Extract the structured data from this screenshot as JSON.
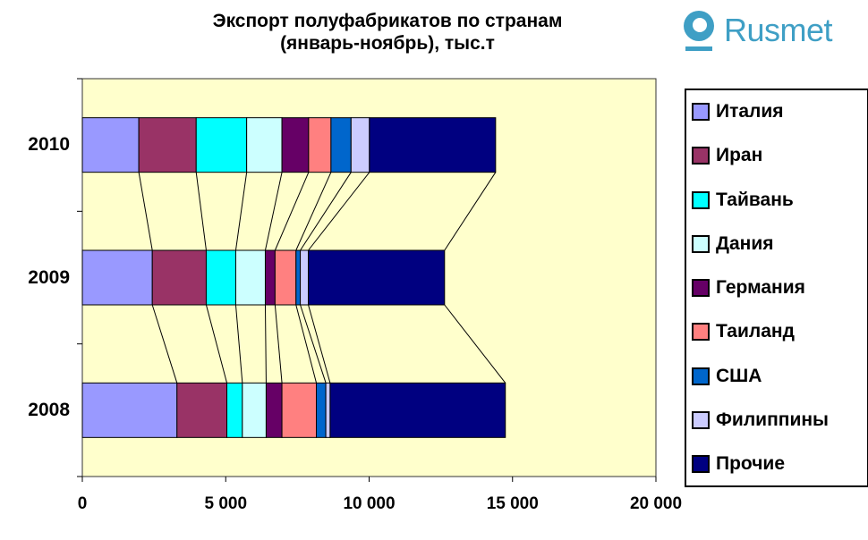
{
  "title": {
    "line1": "Экспорт полуфабрикатов по странам",
    "line2": "(январь-ноябрь), тыс.т"
  },
  "logo": {
    "text": "Rusmet",
    "color": "#3f9fc5"
  },
  "chart_data": {
    "type": "bar",
    "orientation": "horizontal",
    "stacked": true,
    "series_lines": true,
    "title": "Экспорт полуфабрикатов по странам (январь-ноябрь), тыс.т",
    "categories": [
      "2010",
      "2009",
      "2008"
    ],
    "series": [
      {
        "id": "italy",
        "name": "Италия",
        "color": "#9999FF",
        "values": [
          1970,
          2440,
          3300
        ]
      },
      {
        "id": "iran",
        "name": "Иран",
        "color": "#993366",
        "values": [
          2000,
          1880,
          1740
        ]
      },
      {
        "id": "taiwan",
        "name": "Тайвань",
        "color": "#00FFFF",
        "values": [
          1760,
          1030,
          540
        ]
      },
      {
        "id": "denmark",
        "name": "Дания",
        "color": "#CCFFFF",
        "values": [
          1230,
          1030,
          830
        ]
      },
      {
        "id": "germany",
        "name": "Германия",
        "color": "#660066",
        "values": [
          930,
          340,
          550
        ]
      },
      {
        "id": "thailand",
        "name": "Таиланд",
        "color": "#FF8080",
        "values": [
          780,
          730,
          1200
        ]
      },
      {
        "id": "usa",
        "name": "США",
        "color": "#0066CC",
        "values": [
          700,
          150,
          330
        ]
      },
      {
        "id": "philippines",
        "name": "Филиппины",
        "color": "#CCCCFF",
        "values": [
          640,
          280,
          150
        ]
      },
      {
        "id": "others",
        "name": "Прочие",
        "color": "#000080",
        "values": [
          4400,
          4750,
          6110
        ]
      }
    ],
    "totals": [
      14410,
      12630,
      14750
    ],
    "xlim": [
      0,
      20000
    ],
    "xticks": [
      "0",
      "5 000",
      "10 000",
      "15 000",
      "20 000"
    ],
    "xtick_values": [
      0,
      5000,
      10000,
      15000,
      20000
    ],
    "plot_bg": "#FFFFCC",
    "grid": false,
    "legend_position": "right"
  }
}
